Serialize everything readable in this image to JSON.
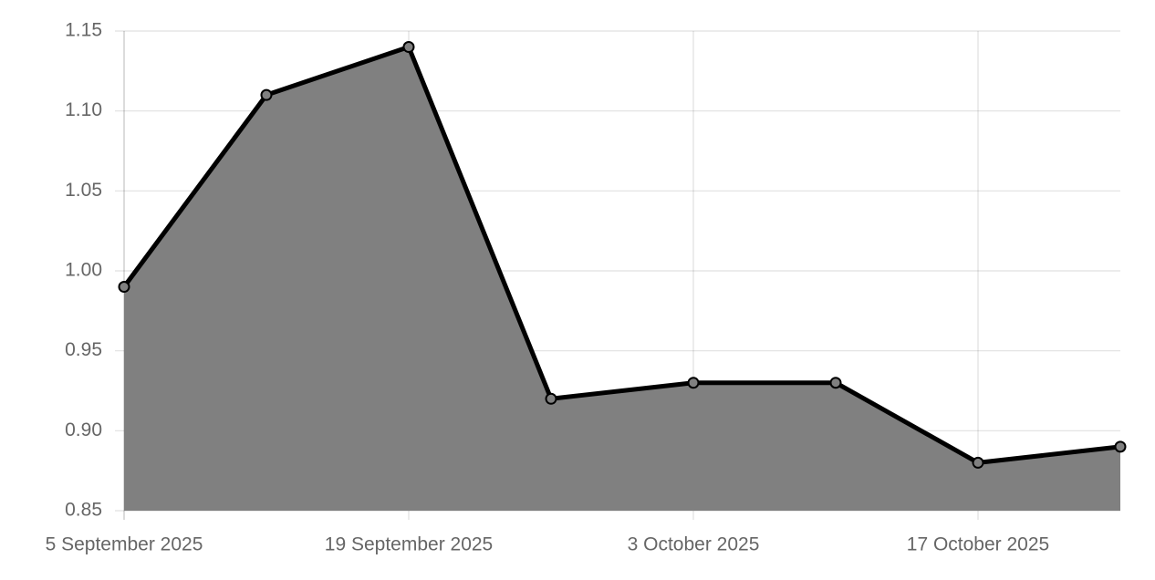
{
  "chart_data": {
    "type": "area",
    "categories": [
      "5 September 2025",
      null,
      "19 September 2025",
      null,
      "3 October 2025",
      null,
      "17 October 2025",
      null
    ],
    "series": [
      {
        "color": "#000000",
        "fill": "#808080",
        "values": [
          0.99,
          1.11,
          1.14,
          0.92,
          0.93,
          0.93,
          0.88,
          0.89
        ]
      }
    ],
    "ylim": [
      0.85,
      1.15
    ],
    "yticks": [
      0.85,
      {
        "value": 0.9,
        "label": "0.90"
      },
      0.95,
      {
        "value": 1.0,
        "label": "1.00"
      },
      1.05,
      {
        "value": 1.1,
        "label": "1.10"
      },
      1.15
    ],
    "grid": true
  }
}
